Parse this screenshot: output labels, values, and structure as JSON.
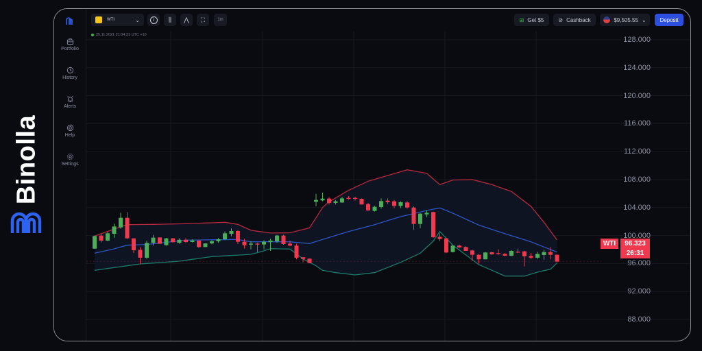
{
  "brand": {
    "name": "Binolla",
    "accent": "#2d63f0"
  },
  "sidebar": {
    "items": [
      {
        "label": "Portfolio",
        "icon": "briefcase-icon"
      },
      {
        "label": "History",
        "icon": "clock-history-icon"
      },
      {
        "label": "Alerts",
        "icon": "bell-icon"
      },
      {
        "label": "Help",
        "icon": "lifebuoy-icon"
      },
      {
        "label": "Settings",
        "icon": "gear-icon"
      }
    ]
  },
  "toolbar": {
    "asset": "WTI",
    "timeframe": "1m",
    "timestamp": "25.11.2021  21:04:31  UTC +10",
    "get_bonus": "Get $5",
    "cashback": "Cashback",
    "balance": "$9,505.55",
    "deposit": "Deposit"
  },
  "price_tag": {
    "asset": "WTI",
    "price": "96.323",
    "countdown": "26:31"
  },
  "colors": {
    "up": "#4cae5a",
    "down": "#f0384f",
    "upper_band": "#b8293e",
    "middle_band": "#2f56c6",
    "lower_band": "#1b7b6a",
    "deposit": "#2d4fe0"
  },
  "chart_data": {
    "type": "candlestick",
    "indicator": "Bollinger Bands",
    "ylim": [
      86,
      130
    ],
    "yticks": [
      "128.000",
      "124.000",
      "120.000",
      "116.000",
      "112.000",
      "108.000",
      "104.000",
      "100.000",
      "96.000",
      "92.000",
      "88.000"
    ],
    "grid": true,
    "candles": [
      [
        98.13,
        100.0,
        98.1,
        99.93
      ],
      [
        100.0,
        100.26,
        99.0,
        99.28
      ],
      [
        99.28,
        100.5,
        99.2,
        100.32
      ],
      [
        100.26,
        101.7,
        99.67,
        101.3
      ],
      [
        101.17,
        103.26,
        100.98,
        102.54
      ],
      [
        102.54,
        103.36,
        99.54,
        99.6
      ],
      [
        99.6,
        99.6,
        97.5,
        97.9
      ],
      [
        97.97,
        98.36,
        95.94,
        96.83
      ],
      [
        96.83,
        99.28,
        96.66,
        98.95
      ],
      [
        98.95,
        100.1,
        98.56,
        99.7
      ],
      [
        99.73,
        99.73,
        98.82,
        98.82
      ],
      [
        98.62,
        99.66,
        98.56,
        99.6
      ],
      [
        99.6,
        99.66,
        98.99,
        99.05
      ],
      [
        98.95,
        99.6,
        98.85,
        99.4
      ],
      [
        99.4,
        99.6,
        98.95,
        99.08
      ],
      [
        99.08,
        99.44,
        99.02,
        99.28
      ],
      [
        99.28,
        99.34,
        98.23,
        98.36
      ],
      [
        98.36,
        98.88,
        98.36,
        98.88
      ],
      [
        98.88,
        99.34,
        98.75,
        99.18
      ],
      [
        99.18,
        99.66,
        98.95,
        99.47
      ],
      [
        99.47,
        100.58,
        99.41,
        100.32
      ],
      [
        100.26,
        101.04,
        99.93,
        100.65
      ],
      [
        100.65,
        100.78,
        98.79,
        99.11
      ],
      [
        99.11,
        99.54,
        98.13,
        98.62
      ],
      [
        98.72,
        99.18,
        98.03,
        98.85
      ],
      [
        98.85,
        98.95,
        97.58,
        98.79
      ],
      [
        98.72,
        99.34,
        98.03,
        99.11
      ],
      [
        99.08,
        99.54,
        97.8,
        99.28
      ],
      [
        99.18,
        100.1,
        98.95,
        100.0
      ],
      [
        100.0,
        100.1,
        98.69,
        98.79
      ],
      [
        98.85,
        99.28,
        98.46,
        98.56
      ],
      [
        98.56,
        98.85,
        96.6,
        96.83
      ],
      [
        96.9,
        96.9,
        96.17,
        96.66
      ],
      [
        96.7,
        96.7,
        96.07,
        96.07
      ],
      [
        104.83,
        105.97,
        104.18,
        105.09
      ],
      [
        105.03,
        106.14,
        104.9,
        105.29
      ],
      [
        105.29,
        105.49,
        104.44,
        104.67
      ],
      [
        104.67,
        105.09,
        104.44,
        104.9
      ],
      [
        104.73,
        105.55,
        104.67,
        105.32
      ],
      [
        105.39,
        105.65,
        105.16,
        105.26
      ],
      [
        105.39,
        105.55,
        105.0,
        105.26
      ],
      [
        105.26,
        105.32,
        104.44,
        104.44
      ],
      [
        104.5,
        104.67,
        103.52,
        103.59
      ],
      [
        103.52,
        104.24,
        103.43,
        104.11
      ],
      [
        104.08,
        105.32,
        103.85,
        104.93
      ],
      [
        104.99,
        105.32,
        104.5,
        104.77
      ],
      [
        104.9,
        105.09,
        103.92,
        104.24
      ],
      [
        104.24,
        104.9,
        103.92,
        104.77
      ],
      [
        104.73,
        104.9,
        103.85,
        104.01
      ],
      [
        104.01,
        104.18,
        100.81,
        101.66
      ],
      [
        101.66,
        103.2,
        101.04,
        103.13
      ],
      [
        103.03,
        103.59,
        102.61,
        103.26
      ],
      [
        103.36,
        103.43,
        99.67,
        99.77
      ],
      [
        99.83,
        100.32,
        99.21,
        99.5
      ],
      [
        99.6,
        99.6,
        97.48,
        97.58
      ],
      [
        97.64,
        98.62,
        97.58,
        98.56
      ],
      [
        98.56,
        98.69,
        98.23,
        98.3
      ],
      [
        98.36,
        98.46,
        97.81,
        97.81
      ],
      [
        97.87,
        97.97,
        96.4,
        97.25
      ],
      [
        97.25,
        97.38,
        96.0,
        96.6
      ],
      [
        96.6,
        97.64,
        96.6,
        97.58
      ],
      [
        97.61,
        97.71,
        97.25,
        97.31
      ],
      [
        97.48,
        98.03,
        97.25,
        97.38
      ],
      [
        97.38,
        97.48,
        97.05,
        97.12
      ],
      [
        97.12,
        97.9,
        97.05,
        97.81
      ],
      [
        97.71,
        98.13,
        97.48,
        97.58
      ],
      [
        97.74,
        97.81,
        95.58,
        97.05
      ],
      [
        97.08,
        97.48,
        96.66,
        96.83
      ],
      [
        96.83,
        97.64,
        96.66,
        97.38
      ],
      [
        97.22,
        97.97,
        96.56,
        97.64
      ],
      [
        97.64,
        98.36,
        96.6,
        97.25
      ],
      [
        97.25,
        97.32,
        96.17,
        96.27
      ]
    ],
    "bands": {
      "upper": [
        [
          1,
          99.93
        ],
        [
          3,
          100.6
        ],
        [
          6,
          101.56
        ],
        [
          10,
          101.6
        ],
        [
          15,
          101.7
        ],
        [
          21,
          101.89
        ],
        [
          23,
          101.6
        ],
        [
          25,
          100.75
        ],
        [
          28,
          100.36
        ],
        [
          31,
          100.4
        ],
        [
          34,
          101.1
        ],
        [
          35,
          102.54
        ],
        [
          36,
          104.01
        ],
        [
          37,
          104.83
        ],
        [
          40,
          106.47
        ],
        [
          43,
          107.77
        ],
        [
          46,
          108.59
        ],
        [
          49,
          109.4
        ],
        [
          52,
          108.9
        ],
        [
          54,
          107.28
        ],
        [
          56,
          107.94
        ],
        [
          59,
          108.0
        ],
        [
          62,
          107.28
        ],
        [
          65,
          106.3
        ],
        [
          68,
          104.18
        ],
        [
          70,
          101.89
        ],
        [
          72,
          99.37
        ]
      ],
      "middle": [
        [
          1,
          97.48
        ],
        [
          4,
          98.1
        ],
        [
          6,
          98.62
        ],
        [
          9,
          98.72
        ],
        [
          15,
          99.34
        ],
        [
          23,
          99.44
        ],
        [
          25,
          99.11
        ],
        [
          31,
          99.11
        ],
        [
          34,
          98.85
        ],
        [
          36,
          99.44
        ],
        [
          40,
          100.58
        ],
        [
          44,
          101.56
        ],
        [
          48,
          102.71
        ],
        [
          52,
          103.59
        ],
        [
          54,
          103.95
        ],
        [
          56,
          103.2
        ],
        [
          60,
          101.5
        ],
        [
          64,
          100.26
        ],
        [
          68,
          99.11
        ],
        [
          70,
          98.36
        ],
        [
          72,
          97.64
        ]
      ],
      "lower": [
        [
          1,
          95.03
        ],
        [
          6,
          95.68
        ],
        [
          8,
          95.94
        ],
        [
          14,
          96.33
        ],
        [
          19,
          96.99
        ],
        [
          25,
          97.31
        ],
        [
          27,
          97.81
        ],
        [
          28,
          98.13
        ],
        [
          31,
          98.07
        ],
        [
          33,
          96.66
        ],
        [
          35,
          95.68
        ],
        [
          36,
          95.03
        ],
        [
          38,
          94.7
        ],
        [
          41,
          94.37
        ],
        [
          44,
          94.7
        ],
        [
          48,
          96.17
        ],
        [
          51,
          97.48
        ],
        [
          53,
          99.2
        ],
        [
          54,
          100.58
        ],
        [
          56,
          98.62
        ],
        [
          60,
          95.84
        ],
        [
          64,
          94.21
        ],
        [
          67,
          94.21
        ],
        [
          69,
          94.76
        ],
        [
          71,
          95.2
        ],
        [
          72,
          96.07
        ]
      ]
    },
    "last_price": 96.323
  }
}
